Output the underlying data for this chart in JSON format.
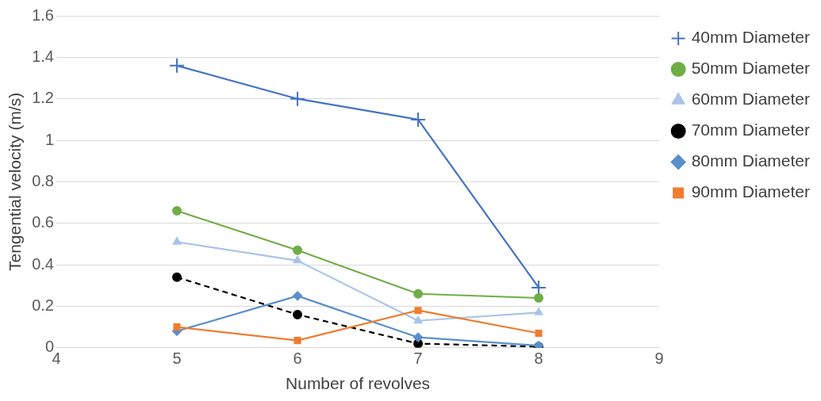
{
  "chart_data": {
    "type": "line",
    "xlabel": "Number of revolves",
    "ylabel": "Tengential velocity (m/s)",
    "x": [
      5,
      6,
      7,
      8
    ],
    "series": [
      {
        "name": "40mm Diameter",
        "color": "#4472c4",
        "marker": "cross",
        "values": [
          1.36,
          1.2,
          1.1,
          0.29
        ]
      },
      {
        "name": "50mm Diameter",
        "color": "#70ad47",
        "marker": "circle",
        "values": [
          0.66,
          0.47,
          0.26,
          0.24
        ]
      },
      {
        "name": "60mm Diameter",
        "color": "#a9c4e8",
        "marker": "triangle",
        "values": [
          0.51,
          0.42,
          0.13,
          0.17
        ]
      },
      {
        "name": "70mm Diameter",
        "color": "#000000",
        "marker": "circle",
        "line_style": "dashed",
        "values": [
          0.34,
          0.16,
          0.02,
          0.005
        ]
      },
      {
        "name": "80mm Diameter",
        "color": "#5b8fc9",
        "marker": "diamond",
        "values": [
          0.08,
          0.25,
          0.05,
          0.01
        ]
      },
      {
        "name": "90mm Diameter",
        "color": "#ed7d31",
        "marker": "square",
        "values": [
          0.1,
          0.035,
          0.18,
          0.07
        ]
      }
    ],
    "xlim": [
      4,
      9
    ],
    "xticks": [
      4,
      5,
      6,
      7,
      8,
      9
    ],
    "ylim": [
      0,
      1.6
    ],
    "yticks": [
      0,
      0.2,
      0.4,
      0.6,
      0.8,
      1,
      1.2,
      1.4,
      1.6
    ],
    "grid": "y",
    "legend": "right"
  }
}
